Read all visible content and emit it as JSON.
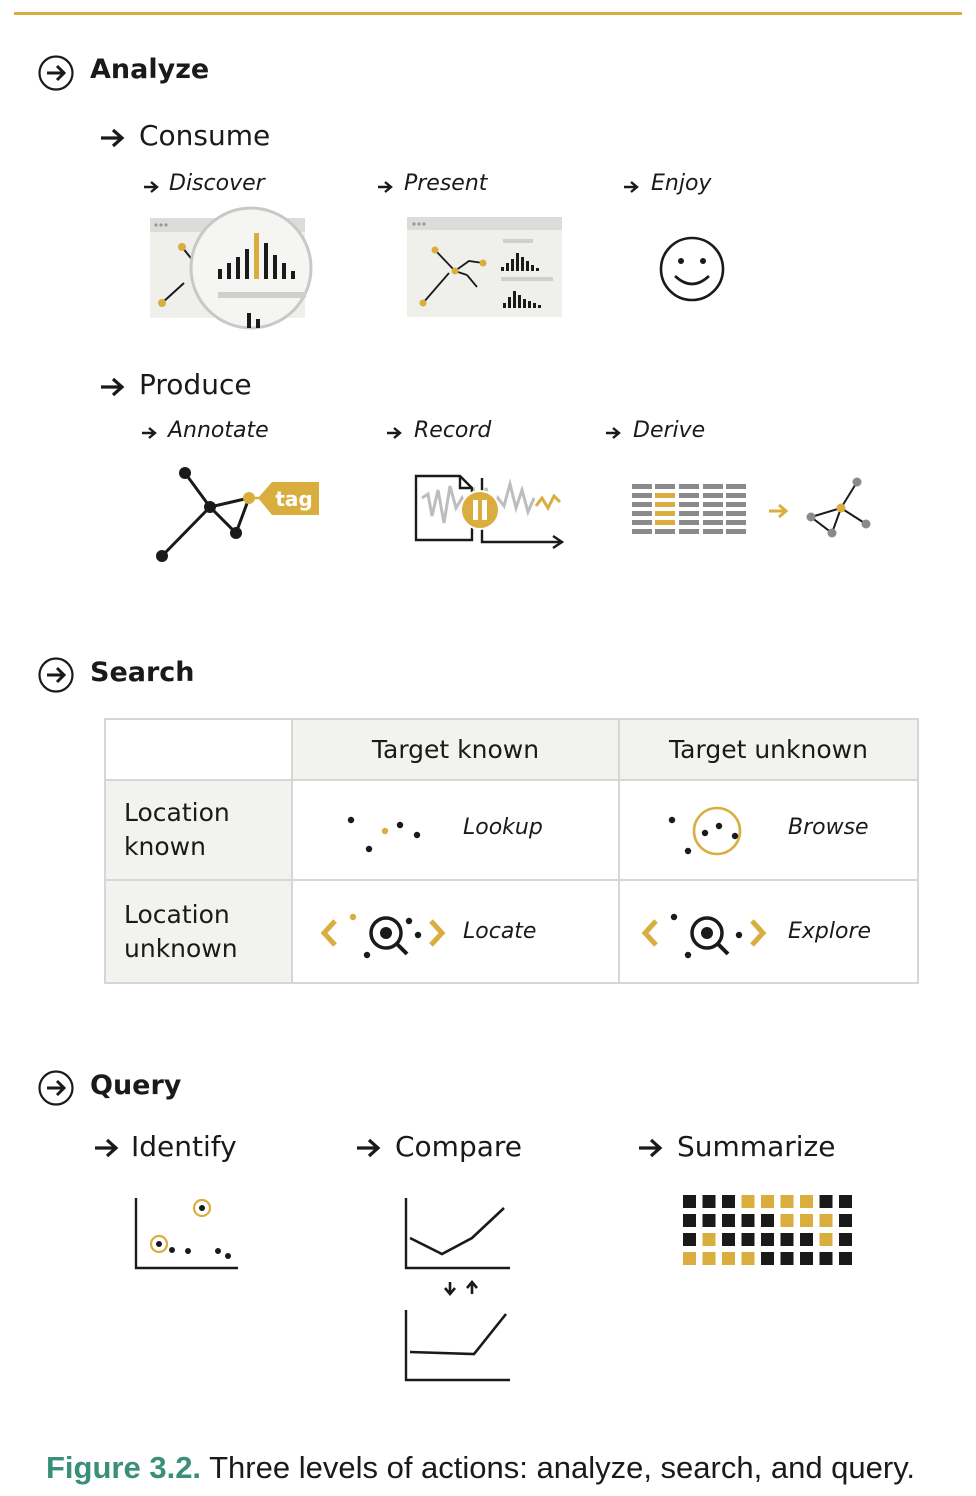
{
  "colors": {
    "accent": "#d9ae3e",
    "ink": "#1a1a1a",
    "grey": "#8a8a8a",
    "caption_label": "#3a8f78"
  },
  "analyze": {
    "title": "Analyze",
    "consume": {
      "title": "Consume",
      "items": [
        {
          "label": "Discover",
          "icon": "magnifier-over-chart-icon"
        },
        {
          "label": "Present",
          "icon": "dashboard-window-icon"
        },
        {
          "label": "Enjoy",
          "icon": "smiley-face-icon"
        }
      ]
    },
    "produce": {
      "title": "Produce",
      "items": [
        {
          "label": "Annotate",
          "icon": "graph-with-tag-icon",
          "tag_text": "tag"
        },
        {
          "label": "Record",
          "icon": "recording-signal-icon"
        },
        {
          "label": "Derive",
          "icon": "table-to-graph-icon"
        }
      ]
    }
  },
  "search": {
    "title": "Search",
    "col_headers": [
      "Target known",
      "Target unknown"
    ],
    "row_headers": [
      "Location known",
      "Location unknown"
    ],
    "cells": [
      [
        "Lookup",
        "Browse"
      ],
      [
        "Locate",
        "Explore"
      ]
    ]
  },
  "query": {
    "title": "Query",
    "items": [
      {
        "label": "Identify",
        "icon": "scatter-identify-icon"
      },
      {
        "label": "Compare",
        "icon": "two-line-charts-compare-icon"
      },
      {
        "label": "Summarize",
        "icon": "square-grid-summary-icon"
      }
    ]
  },
  "caption": {
    "label": "Figure 3.2.",
    "text": "Three levels of actions: analyze, search, and query."
  }
}
